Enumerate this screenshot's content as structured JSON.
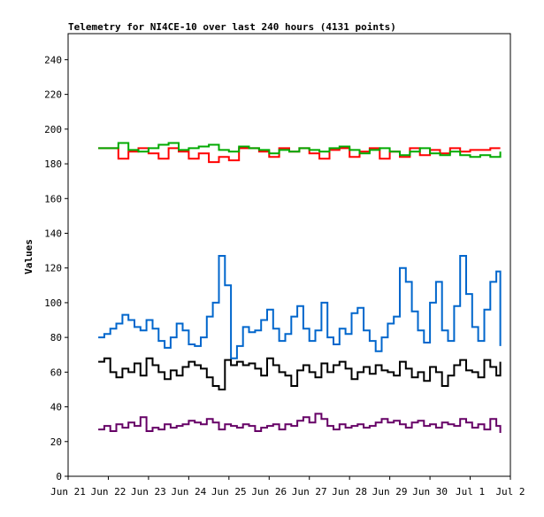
{
  "chart_data": {
    "type": "line",
    "title": "Telemetry for NI4CE-10 over last 240 hours (4131 points)",
    "xlabel": "",
    "ylabel": "Values",
    "ylim": [
      0,
      255
    ],
    "xlim": [
      0,
      11
    ],
    "x_tick_labels": [
      "Jun 21",
      "Jun 22",
      "Jun 23",
      "Jun 24",
      "Jun 25",
      "Jun 26",
      "Jun 27",
      "Jun 28",
      "Jun 29",
      "Jun 30",
      "Jul 1",
      "Jul 2"
    ],
    "y_ticks": [
      0,
      20,
      40,
      60,
      80,
      100,
      120,
      140,
      160,
      180,
      200,
      220,
      240
    ],
    "grid": false,
    "legend": "none",
    "series": [
      {
        "color": "#ff0000",
        "x": [
          0.75,
          1.0,
          1.25,
          1.5,
          1.75,
          2.0,
          2.25,
          2.5,
          2.75,
          3.0,
          3.25,
          3.5,
          3.75,
          4.0,
          4.25,
          4.5,
          4.75,
          5.0,
          5.25,
          5.5,
          5.75,
          6.0,
          6.25,
          6.5,
          6.75,
          7.0,
          7.25,
          7.5,
          7.75,
          8.0,
          8.25,
          8.5,
          8.75,
          9.0,
          9.25,
          9.5,
          9.75,
          10.0,
          10.25,
          10.5,
          10.75
        ],
        "y": [
          189,
          189,
          183,
          187,
          189,
          186,
          183,
          189,
          187,
          183,
          186,
          181,
          184,
          182,
          189,
          189,
          187,
          184,
          189,
          187,
          189,
          186,
          183,
          188,
          189,
          184,
          187,
          189,
          183,
          187,
          184,
          189,
          185,
          188,
          186,
          189,
          187,
          188,
          188,
          189,
          189
        ]
      },
      {
        "color": "#00aa00",
        "x": [
          0.75,
          1.0,
          1.25,
          1.5,
          1.75,
          2.0,
          2.25,
          2.5,
          2.75,
          3.0,
          3.25,
          3.5,
          3.75,
          4.0,
          4.25,
          4.5,
          4.75,
          5.0,
          5.25,
          5.5,
          5.75,
          6.0,
          6.25,
          6.5,
          6.75,
          7.0,
          7.25,
          7.5,
          7.75,
          8.0,
          8.25,
          8.5,
          8.75,
          9.0,
          9.25,
          9.5,
          9.75,
          10.0,
          10.25,
          10.5,
          10.75
        ],
        "y": [
          189,
          189,
          192,
          188,
          187,
          189,
          191,
          192,
          188,
          189,
          190,
          191,
          188,
          187,
          190,
          189,
          188,
          186,
          188,
          187,
          189,
          188,
          187,
          189,
          190,
          188,
          186,
          188,
          189,
          187,
          185,
          187,
          189,
          186,
          185,
          187,
          185,
          184,
          185,
          184,
          187
        ]
      },
      {
        "color": "#0066cc",
        "x": [
          0.75,
          0.9,
          1.05,
          1.2,
          1.35,
          1.5,
          1.65,
          1.8,
          1.95,
          2.1,
          2.25,
          2.4,
          2.55,
          2.7,
          2.85,
          3.0,
          3.15,
          3.3,
          3.45,
          3.6,
          3.75,
          3.9,
          4.05,
          4.2,
          4.35,
          4.5,
          4.65,
          4.8,
          4.95,
          5.1,
          5.25,
          5.4,
          5.55,
          5.7,
          5.85,
          6.0,
          6.15,
          6.3,
          6.45,
          6.6,
          6.75,
          6.9,
          7.05,
          7.2,
          7.35,
          7.5,
          7.65,
          7.8,
          7.95,
          8.1,
          8.25,
          8.4,
          8.55,
          8.7,
          8.85,
          9.0,
          9.15,
          9.3,
          9.45,
          9.6,
          9.75,
          9.9,
          10.05,
          10.2,
          10.35,
          10.5,
          10.65,
          10.75
        ],
        "y": [
          80,
          82,
          85,
          88,
          93,
          90,
          86,
          84,
          90,
          85,
          78,
          74,
          80,
          88,
          84,
          76,
          75,
          80,
          92,
          100,
          127,
          110,
          68,
          75,
          86,
          83,
          84,
          90,
          96,
          85,
          78,
          82,
          92,
          98,
          85,
          78,
          84,
          100,
          80,
          76,
          85,
          82,
          94,
          97,
          84,
          78,
          72,
          80,
          88,
          92,
          120,
          112,
          95,
          84,
          77,
          100,
          112,
          84,
          78,
          98,
          127,
          105,
          86,
          78,
          96,
          112,
          118,
          75
        ]
      },
      {
        "color": "#000000",
        "x": [
          0.75,
          0.9,
          1.05,
          1.2,
          1.35,
          1.5,
          1.65,
          1.8,
          1.95,
          2.1,
          2.25,
          2.4,
          2.55,
          2.7,
          2.85,
          3.0,
          3.15,
          3.3,
          3.45,
          3.6,
          3.75,
          3.9,
          4.05,
          4.2,
          4.35,
          4.5,
          4.65,
          4.8,
          4.95,
          5.1,
          5.25,
          5.4,
          5.55,
          5.7,
          5.85,
          6.0,
          6.15,
          6.3,
          6.45,
          6.6,
          6.75,
          6.9,
          7.05,
          7.2,
          7.35,
          7.5,
          7.65,
          7.8,
          7.95,
          8.1,
          8.25,
          8.4,
          8.55,
          8.7,
          8.85,
          9.0,
          9.15,
          9.3,
          9.45,
          9.6,
          9.75,
          9.9,
          10.05,
          10.2,
          10.35,
          10.5,
          10.65,
          10.75
        ],
        "y": [
          66,
          68,
          60,
          57,
          62,
          60,
          65,
          58,
          68,
          64,
          60,
          56,
          61,
          58,
          63,
          66,
          64,
          62,
          57,
          52,
          50,
          67,
          64,
          66,
          64,
          65,
          62,
          58,
          68,
          64,
          60,
          58,
          52,
          61,
          64,
          60,
          57,
          65,
          60,
          64,
          66,
          62,
          56,
          60,
          63,
          59,
          64,
          61,
          60,
          58,
          66,
          62,
          57,
          60,
          55,
          63,
          60,
          52,
          58,
          64,
          67,
          61,
          60,
          57,
          67,
          63,
          58,
          66
        ]
      },
      {
        "color": "#660066",
        "x": [
          0.75,
          0.9,
          1.05,
          1.2,
          1.35,
          1.5,
          1.65,
          1.8,
          1.95,
          2.1,
          2.25,
          2.4,
          2.55,
          2.7,
          2.85,
          3.0,
          3.15,
          3.3,
          3.45,
          3.6,
          3.75,
          3.9,
          4.05,
          4.2,
          4.35,
          4.5,
          4.65,
          4.8,
          4.95,
          5.1,
          5.25,
          5.4,
          5.55,
          5.7,
          5.85,
          6.0,
          6.15,
          6.3,
          6.45,
          6.6,
          6.75,
          6.9,
          7.05,
          7.2,
          7.35,
          7.5,
          7.65,
          7.8,
          7.95,
          8.1,
          8.25,
          8.4,
          8.55,
          8.7,
          8.85,
          9.0,
          9.15,
          9.3,
          9.45,
          9.6,
          9.75,
          9.9,
          10.05,
          10.2,
          10.35,
          10.5,
          10.65,
          10.75
        ],
        "y": [
          27,
          29,
          26,
          30,
          28,
          31,
          29,
          34,
          26,
          28,
          27,
          30,
          28,
          29,
          30,
          32,
          31,
          30,
          33,
          31,
          27,
          30,
          29,
          28,
          30,
          29,
          26,
          28,
          29,
          30,
          27,
          30,
          29,
          32,
          34,
          31,
          36,
          33,
          29,
          27,
          30,
          28,
          29,
          30,
          28,
          29,
          31,
          33,
          31,
          32,
          30,
          28,
          31,
          32,
          29,
          30,
          28,
          31,
          30,
          29,
          33,
          31,
          28,
          30,
          27,
          33,
          29,
          25
        ]
      }
    ]
  }
}
